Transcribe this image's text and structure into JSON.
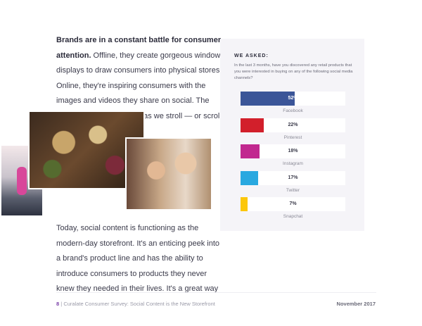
{
  "body": {
    "p1_bold": "Brands are in a constant battle for consumer attention.",
    "p1_rest": " Offline, they create gorgeous window displays to draw consumers into physical stores. Online, they're inspiring consumers with the images and videos they share on social. The intention is clear: stop us as we stroll — or scroll — by.",
    "p2": "Today, social content is functioning as the modern-day storefront. It's an enticing peek into a brand's product line and has the ability to introduce consumers to products they never knew they needed in their lives. It's a great way"
  },
  "chart_data": {
    "type": "bar",
    "orientation": "horizontal",
    "title": "WE ASKED:",
    "subtitle": "In the last 3 months, have you discovered any retail products that you were interested in buying on any of the following social media channels?",
    "categories": [
      "Facebook",
      "Pinterest",
      "Instagram",
      "Twitter",
      "Snapchat"
    ],
    "values": [
      52,
      22,
      18,
      17,
      7
    ],
    "value_labels": [
      "52%",
      "22%",
      "18%",
      "17%",
      "7%"
    ],
    "colors": [
      "#3b5598",
      "#d21f2b",
      "#c1288f",
      "#29a8e0",
      "#fcc70a"
    ],
    "xlim": [
      0,
      100
    ]
  },
  "footer": {
    "page": "8",
    "separator": "|",
    "title": "Curalate Consumer Survey: Social Content is the New Storefront",
    "date": "November 2017"
  }
}
